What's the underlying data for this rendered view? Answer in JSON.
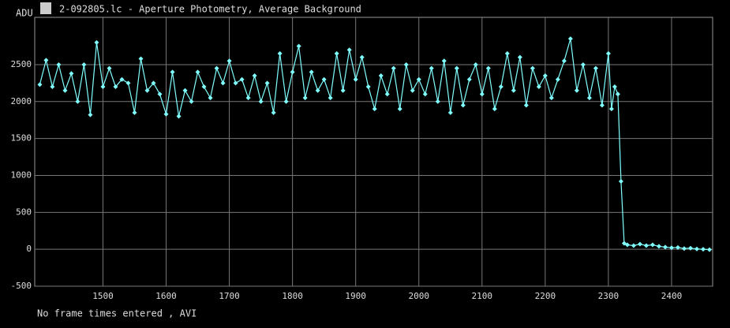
{
  "chart_data": {
    "type": "line",
    "title": "2-092805.lc - Aperture Photometry, Average Background",
    "y_label": "ADU",
    "footer": "No frame times entered , AVI",
    "x": [
      1400,
      1410,
      1420,
      1430,
      1440,
      1450,
      1460,
      1470,
      1480,
      1490,
      1500,
      1510,
      1520,
      1530,
      1540,
      1550,
      1560,
      1570,
      1580,
      1590,
      1600,
      1610,
      1620,
      1630,
      1640,
      1650,
      1660,
      1670,
      1680,
      1690,
      1700,
      1710,
      1720,
      1730,
      1740,
      1750,
      1760,
      1770,
      1780,
      1790,
      1800,
      1810,
      1820,
      1830,
      1840,
      1850,
      1860,
      1870,
      1880,
      1890,
      1900,
      1910,
      1920,
      1930,
      1940,
      1950,
      1960,
      1970,
      1980,
      1990,
      2000,
      2010,
      2020,
      2030,
      2040,
      2050,
      2060,
      2070,
      2080,
      2090,
      2100,
      2110,
      2120,
      2130,
      2140,
      2150,
      2160,
      2170,
      2180,
      2190,
      2200,
      2210,
      2220,
      2230,
      2240,
      2250,
      2260,
      2270,
      2280,
      2290,
      2300,
      2305,
      2310,
      2315,
      2320,
      2325,
      2330,
      2340,
      2350,
      2360,
      2370,
      2380,
      2390,
      2400,
      2410,
      2420,
      2430,
      2440,
      2450,
      2460
    ],
    "series": [
      {
        "name": "Average Background",
        "color": "#80ffff",
        "values": [
          2230,
          2560,
          2200,
          2500,
          2150,
          2380,
          2000,
          2500,
          1820,
          2800,
          2200,
          2450,
          2200,
          2300,
          2250,
          1850,
          2580,
          2150,
          2250,
          2100,
          1830,
          2400,
          1800,
          2150,
          2000,
          2400,
          2200,
          2050,
          2450,
          2250,
          2550,
          2250,
          2300,
          2050,
          2350,
          2000,
          2250,
          1850,
          2650,
          2000,
          2400,
          2750,
          2050,
          2400,
          2150,
          2300,
          2050,
          2650,
          2150,
          2700,
          2300,
          2600,
          2200,
          1900,
          2350,
          2100,
          2450,
          1900,
          2500,
          2150,
          2300,
          2100,
          2450,
          2000,
          2550,
          1850,
          2450,
          1950,
          2300,
          2500,
          2100,
          2450,
          1900,
          2200,
          2650,
          2150,
          2600,
          1950,
          2450,
          2200,
          2350,
          2050,
          2300,
          2550,
          2850,
          2150,
          2500,
          2050,
          2450,
          1950,
          2650,
          1900,
          2200,
          2100,
          920,
          80,
          60,
          50,
          70,
          50,
          60,
          40,
          30,
          20,
          25,
          10,
          15,
          5,
          0,
          -5
        ]
      }
    ],
    "xlim": [
      1392,
      2465
    ],
    "ylim": [
      -500,
      3140
    ],
    "xticks": [
      1500,
      1600,
      1700,
      1800,
      1900,
      2000,
      2100,
      2200,
      2300,
      2400
    ],
    "yticks": [
      -500,
      0,
      500,
      1000,
      1500,
      2000,
      2500
    ],
    "grid": true
  }
}
